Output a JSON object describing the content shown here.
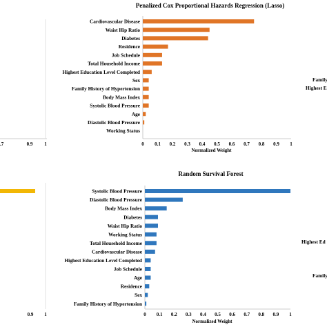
{
  "chart_data": [
    {
      "type": "bar",
      "orientation": "horizontal",
      "title": "Penalized Cox Proportional Hazards Regression (Lasso)",
      "xlabel": "Normalized Weight",
      "xlim": [
        0,
        1
      ],
      "x_ticks": [
        "0",
        "0.1",
        "0.2",
        "0.3",
        "0.4",
        "0.5",
        "0.6",
        "0.7",
        "0.8",
        "0.9",
        "1"
      ],
      "color": "#e07527",
      "categories": [
        "Cardiovascular Disease",
        "Waist Hip Ratio",
        "Diabetes",
        "Residence",
        "Job Schedule",
        "Total Household Income",
        "Highest Education Level Completed",
        "Sex",
        "Family History of Hypertension",
        "Body Mass Index",
        "Systolic Blood Pressure",
        "Age",
        "Diastolic Blood Pressure",
        "Working Status"
      ],
      "values": [
        0.75,
        0.45,
        0.44,
        0.17,
        0.13,
        0.13,
        0.06,
        0.04,
        0.04,
        0.04,
        0.04,
        0.02,
        0.01,
        0.0
      ]
    },
    {
      "type": "bar",
      "orientation": "horizontal",
      "title": "Random Survival Forest",
      "xlabel": "Normalized Weight",
      "xlim": [
        0,
        1
      ],
      "x_ticks": [
        "0",
        "0.1",
        "0.2",
        "0.3",
        "0.4",
        "0.5",
        "0.6",
        "0.7",
        "0.8",
        "0.9",
        "1"
      ],
      "color": "#2f77bd",
      "categories": [
        "Systolic Blood Pressure",
        "Diastolic Blood Pressure",
        "Body Mass Index",
        "Diabetes",
        "Waist Hip Ratio",
        "Working Status",
        "Total Household Income",
        "Cardiovascular Disease",
        "Highest Education Level Completed",
        "Job Schedule",
        "Age",
        "Residence",
        "Sex",
        "Family History of Hypertension"
      ],
      "values": [
        1.0,
        0.26,
        0.15,
        0.09,
        0.09,
        0.08,
        0.08,
        0.07,
        0.04,
        0.04,
        0.04,
        0.03,
        0.02,
        0.01
      ]
    },
    {
      "type": "bar",
      "orientation": "horizontal",
      "partial": "left panel, cropped at image edge",
      "x_ticks_visible": [
        ".7",
        "0.9",
        "1"
      ]
    },
    {
      "type": "bar",
      "orientation": "horizontal",
      "partial": "left panel, cropped at image edge",
      "color": "#f2b705",
      "x_ticks_visible": [
        "0.9",
        "1"
      ]
    }
  ],
  "cropped_right_labels": {
    "top": [
      "Family",
      "Highest Ed"
    ],
    "bottom": [
      "Highest Ed",
      "Family"
    ]
  }
}
